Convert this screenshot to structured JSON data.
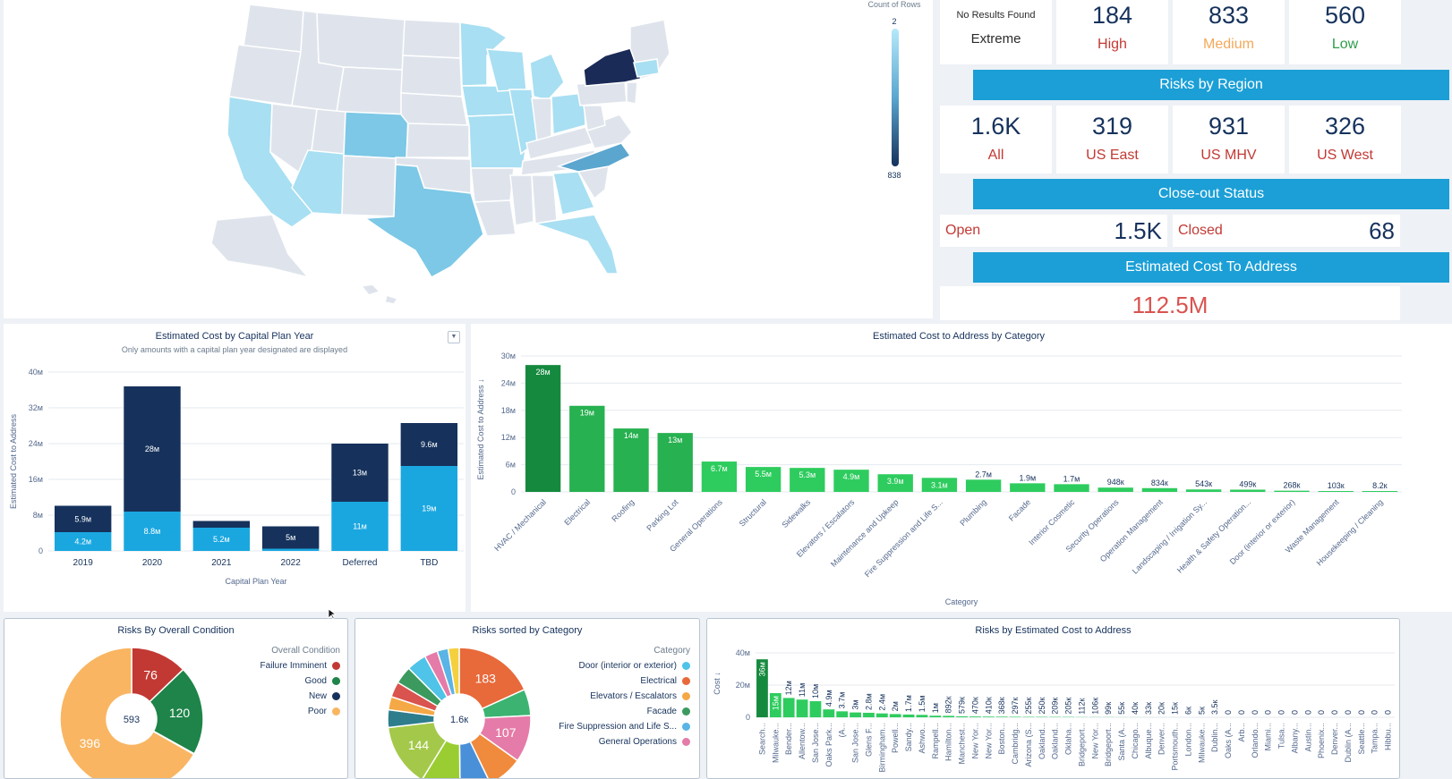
{
  "map": {
    "legend_title": "Count of Rows",
    "legend_min": "2",
    "legend_max": "838"
  },
  "risk_levels": [
    {
      "value": "No Results Found",
      "label": "Extreme",
      "color": "#2b2b2b"
    },
    {
      "value": "184",
      "label": "High",
      "color": "#c23934"
    },
    {
      "value": "833",
      "label": "Medium",
      "color": "#f4a95a"
    },
    {
      "value": "560",
      "label": "Low",
      "color": "#2e9e4a"
    }
  ],
  "regions_banner": "Risks by Region",
  "regions": [
    {
      "value": "1.6K",
      "label": "All"
    },
    {
      "value": "319",
      "label": "US East"
    },
    {
      "value": "931",
      "label": "US MHV"
    },
    {
      "value": "326",
      "label": "US West"
    }
  ],
  "closeout_banner": "Close-out Status",
  "closeout": {
    "open_label": "Open",
    "open_value": "1.5K",
    "closed_label": "Closed",
    "closed_value": "68"
  },
  "cost_banner": "Estimated Cost To Address",
  "cost_value": "112.5M",
  "colors": {
    "accent": "#1b9fd6",
    "navy": "#16325c",
    "sky": "#1aa7e0",
    "green": "#2ecc5e",
    "darkgreen": "#158a3e",
    "red": "#c23934"
  },
  "chart_data": [
    {
      "type": "bar",
      "title": "Estimated Cost by Capital Plan Year",
      "subtitle": "Only amounts with a capital plan year designated are displayed",
      "xlabel": "Capital Plan Year",
      "ylabel": "Estimated Cost to Address",
      "categories": [
        "2019",
        "2020",
        "2021",
        "2022",
        "Deferred",
        "TBD"
      ],
      "ylim": [
        0,
        40
      ],
      "yticks": [
        "0",
        "8м",
        "16м",
        "24м",
        "32м",
        "40м"
      ],
      "series": [
        {
          "name": "lower",
          "values": [
            4.2,
            8.8,
            5.2,
            0.5,
            11,
            19
          ],
          "labels": [
            "4.2м",
            "8.8м",
            "5.2м",
            "",
            "11м",
            "19м"
          ]
        },
        {
          "name": "upper",
          "values": [
            5.9,
            28,
            1.5,
            5,
            13,
            9.6
          ],
          "labels": [
            "5.9м",
            "28м",
            "",
            "5м",
            "13м",
            "9.6м"
          ]
        }
      ]
    },
    {
      "type": "bar",
      "title": "Estimated Cost to Address by Category",
      "xlabel": "Category",
      "ylabel": "Estimated Cost to Address ↓",
      "categories": [
        "HVAC / Mechanical",
        "Electrical",
        "Roofing",
        "Parking Lot",
        "General Operations",
        "Structural",
        "Sidewalks",
        "Elevators / Escalators",
        "Maintenance and Upkeep",
        "Fire Suppression and Life S...",
        "Plumbing",
        "Facade",
        "Interior Cosmetic",
        "Security Operations",
        "Operation Management",
        "Landscaping / Irrigation Sy...",
        "Health & Safety Operation...",
        "Door (interior or exterior)",
        "Waste Management",
        "Housekeeping / Cleaning"
      ],
      "values": [
        28,
        19,
        14,
        13,
        6.7,
        5.5,
        5.3,
        4.9,
        3.9,
        3.1,
        2.7,
        1.9,
        1.7,
        0.948,
        0.834,
        0.543,
        0.499,
        0.268,
        0.103,
        0.0082
      ],
      "labels": [
        "28м",
        "19м",
        "14м",
        "13м",
        "6.7м",
        "5.5м",
        "5.3м",
        "4.9м",
        "3.9м",
        "3.1м",
        "2.7м",
        "1.9м",
        "1.7м",
        "948к",
        "834к",
        "543к",
        "499к",
        "268к",
        "103к",
        "8.2к"
      ],
      "ylim": [
        0,
        30
      ],
      "yticks": [
        "0",
        "6м",
        "12м",
        "18м",
        "24м",
        "30м"
      ]
    },
    {
      "type": "pie",
      "title": "Risks By Overall Condition",
      "legend_title": "Overall Condition",
      "center_label": "593",
      "slices": [
        {
          "name": "Failure Imminent",
          "value": 76,
          "color": "#c23934"
        },
        {
          "name": "Good",
          "value": 120,
          "color": "#1e8449"
        },
        {
          "name": "New",
          "value": 1,
          "color": "#16325c"
        },
        {
          "name": "Poor",
          "value": 396,
          "color": "#f9b562"
        }
      ]
    },
    {
      "type": "pie",
      "title": "Risks sorted by Category",
      "legend_title": "Category",
      "center_label": "1.6к",
      "legend": [
        {
          "name": "Door (interior or exterior)",
          "color": "#4fc3e8"
        },
        {
          "name": "Electrical",
          "color": "#e8693a"
        },
        {
          "name": "Elevators / Escalators",
          "color": "#f5a846"
        },
        {
          "name": "Facade",
          "color": "#3c9a5e"
        },
        {
          "name": "Fire Suppression and Life S...",
          "color": "#5ab4e5"
        },
        {
          "name": "General Operations",
          "color": "#e57ba8"
        }
      ],
      "slices": [
        {
          "value": 183,
          "label": "183",
          "color": "#e8693a"
        },
        {
          "value": 60,
          "label": "",
          "color": "#3cb371"
        },
        {
          "value": 107,
          "label": "107",
          "color": "#e57ba8"
        },
        {
          "value": 80,
          "label": "",
          "color": "#f08a3c"
        },
        {
          "value": 70,
          "label": "",
          "color": "#4a90d9"
        },
        {
          "value": 90,
          "label": "",
          "color": "#9acd32"
        },
        {
          "value": 144,
          "label": "144",
          "color": "#a4c94a"
        },
        {
          "value": 40,
          "label": "",
          "color": "#2e7d8c"
        },
        {
          "value": 30,
          "label": "",
          "color": "#f5a846"
        },
        {
          "value": 35,
          "label": "",
          "color": "#d9534f"
        },
        {
          "value": 40,
          "label": "",
          "color": "#3c9a5e"
        },
        {
          "value": 45,
          "label": "",
          "color": "#4fc3e8"
        },
        {
          "value": 30,
          "label": "",
          "color": "#e57ba8"
        },
        {
          "value": 25,
          "label": "",
          "color": "#5ab4e5"
        },
        {
          "value": 25,
          "label": "",
          "color": "#f4d03f"
        }
      ]
    },
    {
      "type": "bar",
      "title": "Risks by Estimated Cost to Address",
      "ylabel": "Cost ↓",
      "ylim": [
        0,
        40
      ],
      "yticks": [
        "0",
        "20м",
        "40м"
      ],
      "values": [
        36,
        15,
        12,
        11,
        10,
        4.9,
        3.7,
        3,
        2.8,
        2.4,
        2,
        1.7,
        1.5,
        1,
        0.892,
        0.579,
        0.47,
        0.41,
        0.368,
        0.297,
        0.255,
        0.25,
        0.209,
        0.205,
        0.112,
        0.106,
        0.099,
        0.055,
        0.04,
        0.033,
        0.02,
        0.015,
        0.006,
        0.005,
        0.0035,
        0,
        0,
        0,
        0,
        0,
        0,
        0,
        0,
        0,
        0,
        0,
        0,
        0
      ],
      "labels": [
        "36м",
        "15м",
        "12м",
        "11м",
        "10м",
        "4.9м",
        "3.7м",
        "3м",
        "2.8м",
        "2.4м",
        "2м",
        "1.7м",
        "1.5м",
        "1м",
        "892к",
        "579к",
        "470к",
        "410к",
        "368к",
        "297к",
        "255к",
        "250к",
        "209к",
        "205к",
        "112к",
        "106к",
        "99к",
        "55к",
        "40к",
        "33к",
        "20к",
        "15к",
        "6к",
        "5к",
        "3.5к",
        "0",
        "0",
        "0",
        "0",
        "0",
        "0",
        "0",
        "0",
        "0",
        "0",
        "0",
        "0",
        "0"
      ],
      "categories": [
        "Search...",
        "Milwauke...",
        "Bender...",
        "Allentow...",
        "San Jose...",
        "Oaks Park...",
        "(A...",
        "San Jose...",
        "Glens F...",
        "Birmingham...",
        "Powell...",
        "Sandy...",
        "Ashwo...",
        "Rampell...",
        "Hamilton...",
        "Manchest...",
        "New Yor...",
        "New Yor...",
        "Boston...",
        "Cambridg...",
        "Arizona (S...",
        "Oakland...",
        "Oakland...",
        "Oklaha...",
        "Bridgeport...",
        "New Yor...",
        "Bridgeport...",
        "Santa (A...",
        "Chicago...",
        "Albuque...",
        "Denver...",
        "Portsmouth...",
        "London...",
        "Milwauke...",
        "Dublin...",
        "Oaks (A...",
        "Arb...",
        "Orlando...",
        "Miami...",
        "Tulsa...",
        "Albany...",
        "Austin...",
        "Phoenix...",
        "Denver...",
        "Dublin (A...",
        "Seattle...",
        "Tampa...",
        "Hibbu..."
      ]
    }
  ]
}
